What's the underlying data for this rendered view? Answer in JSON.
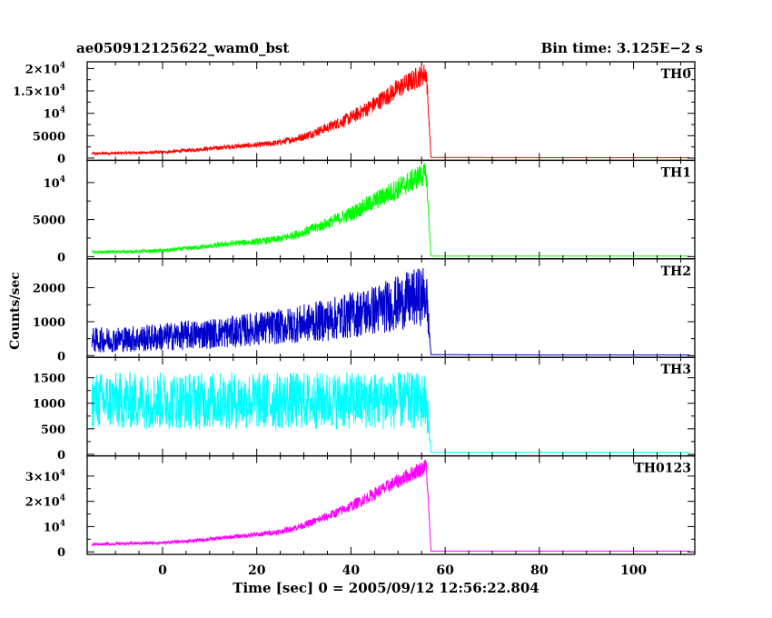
{
  "header": {
    "title": "ae050912125622_wam0_bst",
    "bin_time": "Bin time: 3.125E−2 s"
  },
  "chart_data": {
    "type": "line",
    "xlabel": "Time [sec] 0 = 2005/09/12 12:56:22.804",
    "ylabel": "Counts/sec",
    "xlim": [
      -16,
      113
    ],
    "x_ticks": [
      0,
      20,
      40,
      60,
      80,
      100
    ],
    "burst_end": 56,
    "panels": [
      {
        "name": "TH0",
        "color": "#ff0000",
        "ylim": [
          -500,
          21500
        ],
        "y_ticks": [
          {
            "value": 0,
            "label": "0"
          },
          {
            "value": 5000,
            "label": "5000"
          },
          {
            "value": 10000,
            "label": "10⁴"
          },
          {
            "value": 15000,
            "label": "1.5×10⁴"
          },
          {
            "value": 20000,
            "label": "2×10⁴"
          }
        ],
        "x": [
          -15,
          -10,
          -5,
          0,
          5,
          10,
          15,
          20,
          25,
          30,
          35,
          40,
          45,
          50,
          55,
          56,
          57,
          80,
          100,
          112
        ],
        "y": [
          1000,
          1100,
          1200,
          1300,
          1700,
          2100,
          2600,
          2900,
          3500,
          4800,
          6800,
          9000,
          12000,
          15500,
          18500,
          19000,
          150,
          100,
          100,
          100
        ],
        "noise": [
          200,
          200,
          250,
          250,
          300,
          350,
          400,
          450,
          550,
          700,
          900,
          1200,
          1500,
          1800,
          2000,
          2000,
          0,
          0,
          0,
          0
        ]
      },
      {
        "name": "TH1",
        "color": "#00ff00",
        "ylim": [
          -300,
          13000
        ],
        "y_ticks": [
          {
            "value": 0,
            "label": "0"
          },
          {
            "value": 5000,
            "label": "5000"
          },
          {
            "value": 10000,
            "label": "10⁴"
          }
        ],
        "x": [
          -15,
          -10,
          -5,
          0,
          5,
          10,
          15,
          20,
          25,
          30,
          35,
          40,
          45,
          50,
          55,
          56,
          57,
          80,
          100,
          112
        ],
        "y": [
          600,
          650,
          700,
          800,
          1100,
          1400,
          1800,
          2000,
          2400,
          3300,
          4500,
          5800,
          7500,
          9200,
          11000,
          11000,
          80,
          80,
          80,
          80
        ],
        "noise": [
          150,
          150,
          180,
          200,
          220,
          250,
          300,
          350,
          400,
          500,
          650,
          800,
          1000,
          1200,
          1300,
          1300,
          0,
          0,
          0,
          0
        ]
      },
      {
        "name": "TH2",
        "color": "#0000cc",
        "ylim": [
          -50,
          2850
        ],
        "y_ticks": [
          {
            "value": 0,
            "label": "0"
          },
          {
            "value": 1000,
            "label": "1000"
          },
          {
            "value": 2000,
            "label": "2000"
          }
        ],
        "x": [
          -15,
          -10,
          -5,
          0,
          5,
          10,
          15,
          20,
          25,
          30,
          35,
          40,
          45,
          50,
          55,
          56,
          57,
          80,
          100,
          112
        ],
        "y": [
          450,
          480,
          500,
          550,
          600,
          650,
          700,
          800,
          850,
          950,
          1050,
          1200,
          1350,
          1550,
          1750,
          1800,
          30,
          20,
          20,
          20
        ],
        "noise": [
          300,
          300,
          320,
          330,
          350,
          360,
          380,
          400,
          420,
          450,
          500,
          550,
          600,
          650,
          700,
          700,
          0,
          0,
          0,
          0
        ]
      },
      {
        "name": "TH3",
        "color": "#00ffff",
        "ylim": [
          -30,
          1900
        ],
        "y_ticks": [
          {
            "value": 0,
            "label": "0"
          },
          {
            "value": 500,
            "label": "500"
          },
          {
            "value": 1000,
            "label": "1000"
          },
          {
            "value": 1500,
            "label": "1500"
          }
        ],
        "x": [
          -15,
          -10,
          -5,
          0,
          5,
          10,
          15,
          20,
          25,
          30,
          35,
          40,
          45,
          50,
          55,
          56,
          57,
          80,
          100,
          112
        ],
        "y": [
          1050,
          1050,
          1050,
          1050,
          1050,
          1050,
          1050,
          1050,
          1050,
          1050,
          1050,
          1050,
          1050,
          1050,
          1050,
          1050,
          40,
          40,
          40,
          40
        ],
        "noise": [
          450,
          450,
          450,
          450,
          450,
          450,
          450,
          450,
          450,
          450,
          450,
          450,
          450,
          450,
          450,
          450,
          0,
          0,
          0,
          0
        ]
      },
      {
        "name": "TH0123",
        "color": "#ff00ff",
        "ylim": [
          -1000,
          38000
        ],
        "y_ticks": [
          {
            "value": 0,
            "label": "0"
          },
          {
            "value": 10000,
            "label": "10⁴"
          },
          {
            "value": 20000,
            "label": "2×10⁴"
          },
          {
            "value": 30000,
            "label": "3×10⁴"
          }
        ],
        "x": [
          -15,
          -10,
          -5,
          0,
          5,
          10,
          15,
          20,
          25,
          30,
          35,
          40,
          45,
          50,
          55,
          56,
          57,
          80,
          100,
          112
        ],
        "y": [
          3000,
          3200,
          3400,
          3600,
          4200,
          5000,
          6000,
          6800,
          8000,
          10500,
          14000,
          18000,
          23000,
          28000,
          33000,
          34000,
          300,
          300,
          300,
          300
        ],
        "noise": [
          400,
          400,
          450,
          450,
          500,
          550,
          650,
          750,
          900,
          1100,
          1400,
          1700,
          2000,
          2300,
          2500,
          2500,
          0,
          0,
          0,
          0
        ]
      }
    ]
  }
}
